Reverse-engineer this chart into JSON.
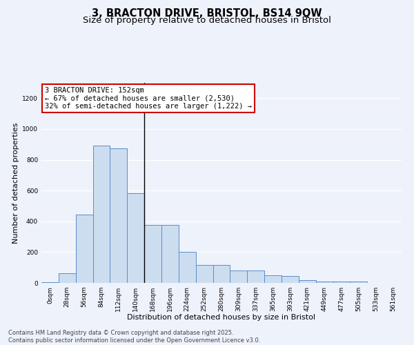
{
  "title_line1": "3, BRACTON DRIVE, BRISTOL, BS14 9QW",
  "title_line2": "Size of property relative to detached houses in Bristol",
  "xlabel": "Distribution of detached houses by size in Bristol",
  "ylabel": "Number of detached properties",
  "bin_labels": [
    "0sqm",
    "28sqm",
    "56sqm",
    "84sqm",
    "112sqm",
    "140sqm",
    "168sqm",
    "196sqm",
    "224sqm",
    "252sqm",
    "280sqm",
    "309sqm",
    "337sqm",
    "365sqm",
    "393sqm",
    "421sqm",
    "449sqm",
    "477sqm",
    "505sqm",
    "533sqm",
    "561sqm"
  ],
  "bar_values": [
    5,
    65,
    445,
    890,
    875,
    585,
    378,
    378,
    200,
    115,
    115,
    80,
    80,
    50,
    45,
    20,
    10,
    10,
    10,
    2,
    0
  ],
  "bar_color": "#ccddf0",
  "bar_edge_color": "#5b8cc8",
  "background_color": "#eef2fb",
  "grid_color": "#ffffff",
  "ylim": [
    0,
    1300
  ],
  "yticks": [
    0,
    200,
    400,
    600,
    800,
    1000,
    1200
  ],
  "property_bin_index": 5,
  "annotation_text": "3 BRACTON DRIVE: 152sqm\n← 67% of detached houses are smaller (2,530)\n32% of semi-detached houses are larger (1,222) →",
  "annotation_box_color": "#ffffff",
  "annotation_box_edge": "#cc0000",
  "vline_color": "#000000",
  "footer_text": "Contains HM Land Registry data © Crown copyright and database right 2025.\nContains public sector information licensed under the Open Government Licence v3.0.",
  "title_fontsize": 10.5,
  "subtitle_fontsize": 9.5,
  "axis_label_fontsize": 8,
  "tick_fontsize": 6.5,
  "annotation_fontsize": 7.5,
  "footer_fontsize": 6.0
}
